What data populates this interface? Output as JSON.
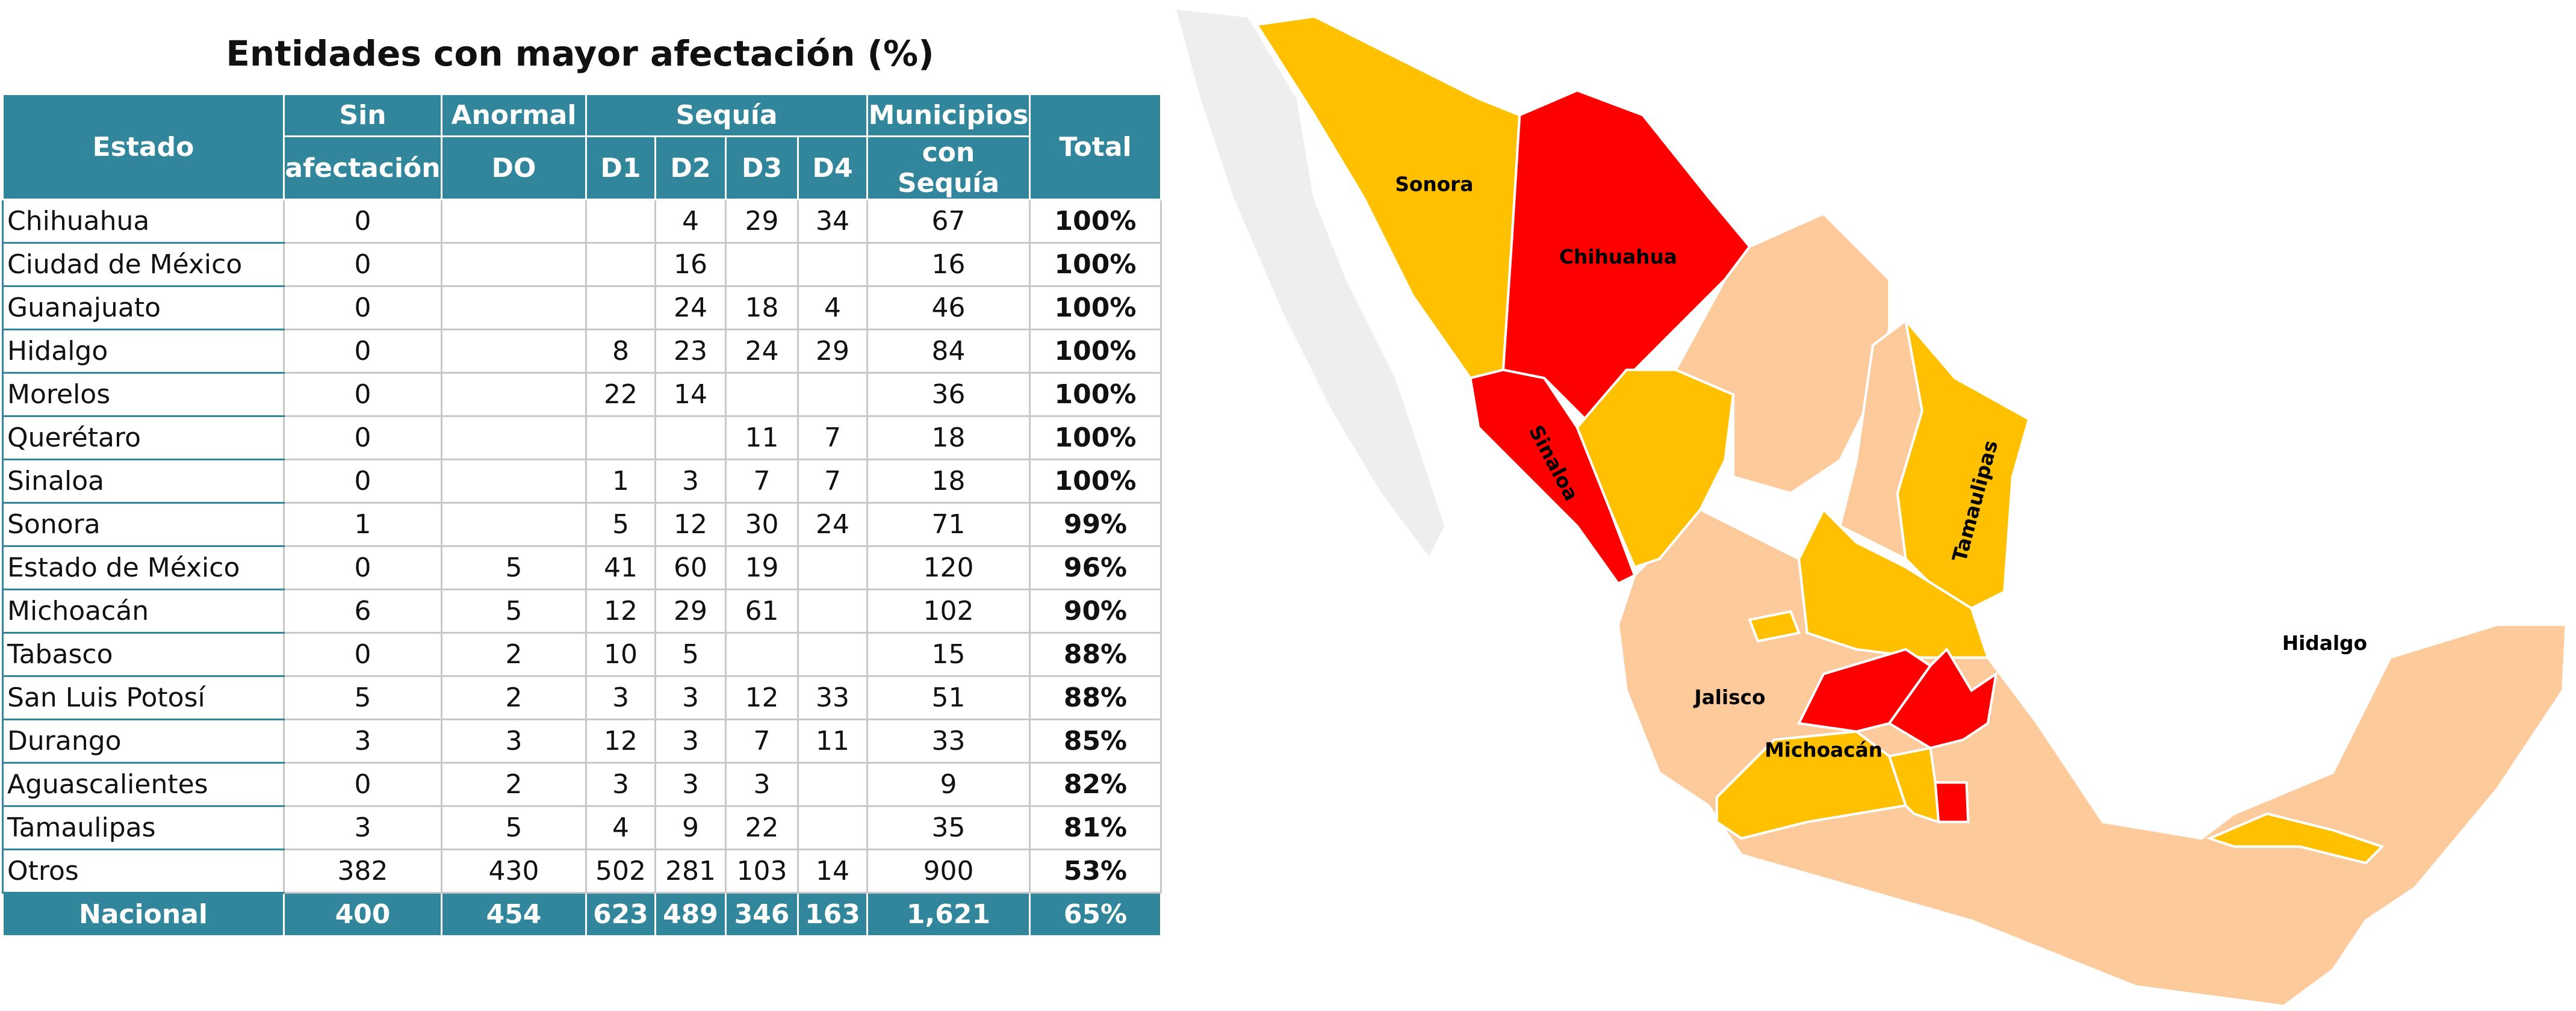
{
  "title": "Entidades con mayor afectación (%)",
  "table": {
    "header": {
      "estado": "Estado",
      "sin_afectacion": [
        "Sin",
        "afectación"
      ],
      "anormal": [
        "Anormal",
        "DO"
      ],
      "sequia": "Sequía",
      "sequia_levels": [
        "D1",
        "D2",
        "D3",
        "D4"
      ],
      "municipios": [
        "Municipios",
        "con Sequía"
      ],
      "total": "Total"
    },
    "rows": [
      [
        "Chihuahua",
        "0",
        null,
        null,
        "4",
        "29",
        "34",
        "67",
        "100%"
      ],
      [
        "Ciudad de México",
        "0",
        null,
        null,
        "16",
        null,
        null,
        "16",
        "100%"
      ],
      [
        "Guanajuato",
        "0",
        null,
        null,
        "24",
        "18",
        "4",
        "46",
        "100%"
      ],
      [
        "Hidalgo",
        "0",
        null,
        "8",
        "23",
        "24",
        "29",
        "84",
        "100%"
      ],
      [
        "Morelos",
        "0",
        null,
        "22",
        "14",
        null,
        null,
        "36",
        "100%"
      ],
      [
        "Querétaro",
        "0",
        null,
        null,
        null,
        "11",
        "7",
        "18",
        "100%"
      ],
      [
        "Sinaloa",
        "0",
        null,
        "1",
        "3",
        "7",
        "7",
        "18",
        "100%"
      ],
      [
        "Sonora",
        "1",
        null,
        "5",
        "12",
        "30",
        "24",
        "71",
        "99%"
      ],
      [
        "Estado de México",
        "0",
        "5",
        "41",
        "60",
        "19",
        null,
        "120",
        "96%"
      ],
      [
        "Michoacán",
        "6",
        "5",
        "12",
        "29",
        "61",
        null,
        "102",
        "90%"
      ],
      [
        "Tabasco",
        "0",
        "2",
        "10",
        "5",
        null,
        null,
        "15",
        "88%"
      ],
      [
        "San Luis Potosí",
        "5",
        "2",
        "3",
        "3",
        "12",
        "33",
        "51",
        "88%"
      ],
      [
        "Durango",
        "3",
        "3",
        "12",
        "3",
        "7",
        "11",
        "33",
        "85%"
      ],
      [
        "Aguascalientes",
        "0",
        "2",
        "3",
        "3",
        "3",
        null,
        "9",
        "82%"
      ],
      [
        "Tamaulipas",
        "3",
        "5",
        "4",
        "9",
        "22",
        null,
        "35",
        "81%"
      ],
      [
        "Otros",
        "382",
        "430",
        "502",
        "281",
        "103",
        "14",
        "900",
        "53%"
      ]
    ],
    "footer": [
      "Nacional",
      "400",
      "454",
      "623",
      "489",
      "346",
      "163",
      "1,621",
      "65%"
    ]
  },
  "map": {
    "labels": [
      "Sonora",
      "Chihuahua",
      "Sinaloa",
      "Tamaulipas",
      "Hidalgo",
      "Jalisco",
      "Michoacán"
    ]
  }
}
